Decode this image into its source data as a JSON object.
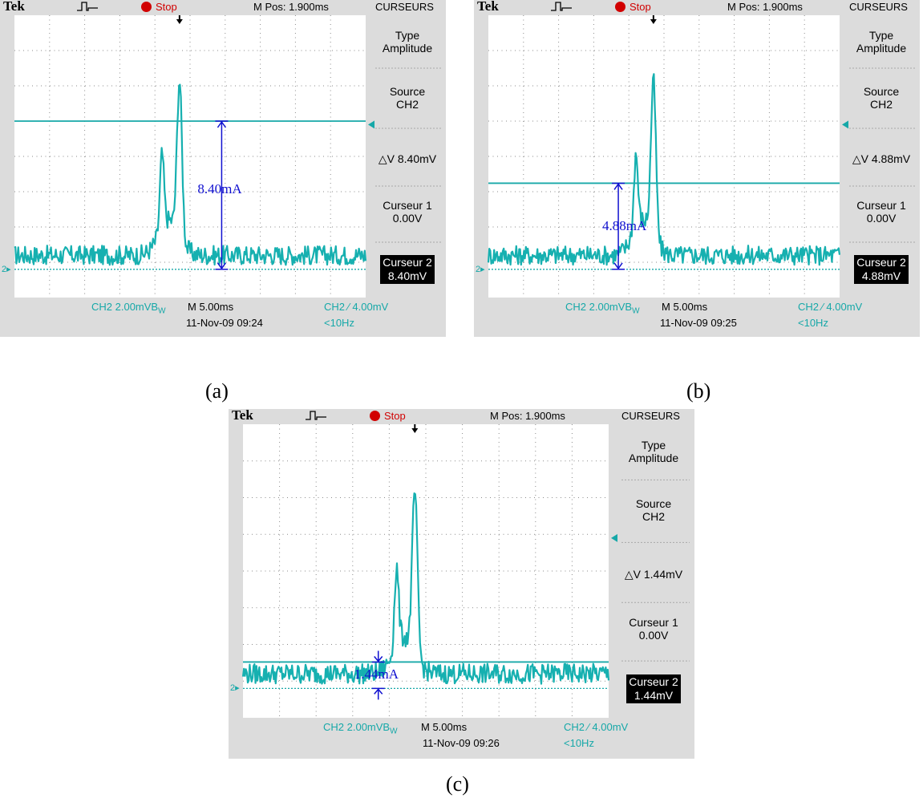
{
  "panels": [
    {
      "caption": "(a)",
      "header": {
        "brand": "Tek",
        "trigger_icon": "pulse-icon",
        "status": "Stop",
        "mpos": "M Pos: 1.900ms",
        "menu_title": "CURSEURS"
      },
      "menu": {
        "type_label": "Type",
        "type_value": "Amplitude",
        "source_label": "Source",
        "source_value": "CH2",
        "delta": "△V 8.40mV",
        "cursor1_label": "Curseur 1",
        "cursor1_value": "0.00V",
        "cursor2_label": "Curseur 2",
        "cursor2_value": "8.40mV"
      },
      "footer": {
        "ch": "CH2  2.00mVB",
        "bw": "W",
        "timebase": "M 5.00ms",
        "trigger": "CH2 ∕ 4.00mV",
        "datetime": "11-Nov-09 09:24",
        "freq": "<10Hz"
      },
      "measurement": "8.40mA",
      "cursor_level_mv": 8.4,
      "channel_marker": "2▸"
    },
    {
      "caption": "(b)",
      "header": {
        "brand": "Tek",
        "trigger_icon": "pulse-icon",
        "status": "Stop",
        "mpos": "M Pos: 1.900ms",
        "menu_title": "CURSEURS"
      },
      "menu": {
        "type_label": "Type",
        "type_value": "Amplitude",
        "source_label": "Source",
        "source_value": "CH2",
        "delta": "△V 4.88mV",
        "cursor1_label": "Curseur 1",
        "cursor1_value": "0.00V",
        "cursor2_label": "Curseur 2",
        "cursor2_value": "4.88mV"
      },
      "footer": {
        "ch": "CH2  2.00mVB",
        "bw": "W",
        "timebase": "M 5.00ms",
        "trigger": "CH2 ∕ 4.00mV",
        "datetime": "11-Nov-09 09:25",
        "freq": "<10Hz"
      },
      "measurement": "4.88mA",
      "cursor_level_mv": 4.88,
      "channel_marker": "2▸"
    },
    {
      "caption": "(c)",
      "header": {
        "brand": "Tek",
        "trigger_icon": "pulse-icon",
        "status": "Stop",
        "mpos": "M Pos: 1.900ms",
        "menu_title": "CURSEURS"
      },
      "menu": {
        "type_label": "Type",
        "type_value": "Amplitude",
        "source_label": "Source",
        "source_value": "CH2",
        "delta": "△V 1.44mV",
        "cursor1_label": "Curseur 1",
        "cursor1_value": "0.00V",
        "cursor2_label": "Curseur 2",
        "cursor2_value": "1.44mV"
      },
      "footer": {
        "ch": "CH2  2.00mVB",
        "bw": "W",
        "timebase": "M 5.00ms",
        "trigger": "CH2 ∕ 4.00mV",
        "datetime": "11-Nov-09 09:26",
        "freq": "<10Hz"
      },
      "measurement": "1.44mA",
      "cursor_level_mv": 1.44,
      "channel_marker": "2▸"
    }
  ],
  "colors": {
    "trace": "#16b0b0",
    "cursor": "#16a8a8",
    "marker": "#1010d0",
    "grid": "#8a8a8a",
    "screen_bg": "#ffffff",
    "bezel": "#dcdcdc"
  }
}
